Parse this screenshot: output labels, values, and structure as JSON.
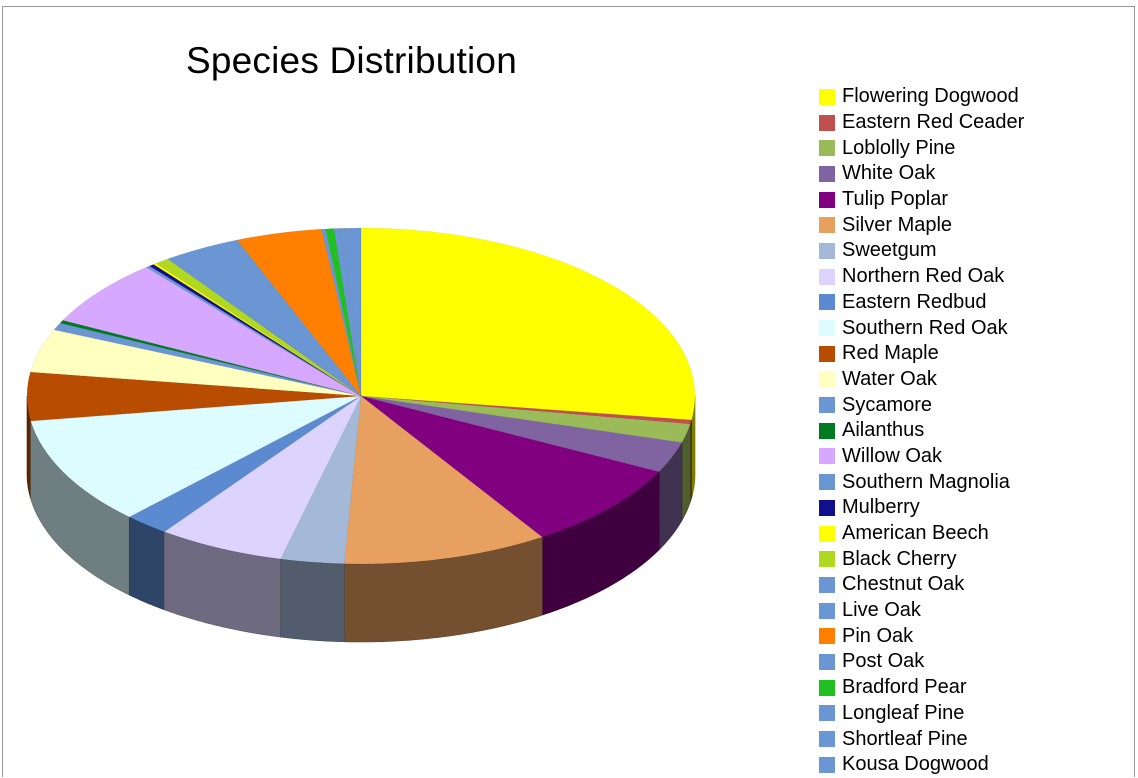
{
  "chart_data": {
    "type": "pie",
    "title": "Species Distribution",
    "legend_position": "right",
    "three_d": true,
    "series": [
      {
        "name": "Flowering Dogwood",
        "value": 27.5,
        "color": "#ffff00"
      },
      {
        "name": "Eastern Red Ceader",
        "value": 0.4,
        "color": "#c0504d"
      },
      {
        "name": "Loblolly Pine",
        "value": 1.8,
        "color": "#9bbb59"
      },
      {
        "name": "White Oak",
        "value": 3.0,
        "color": "#8064a2"
      },
      {
        "name": "Tulip Poplar",
        "value": 8.5,
        "color": "#800080"
      },
      {
        "name": "Silver Maple",
        "value": 10.0,
        "color": "#e8a060"
      },
      {
        "name": "Sweetgum",
        "value": 3.1,
        "color": "#a4b8d8"
      },
      {
        "name": "Northern Red Oak",
        "value": 6.2,
        "color": "#dcd4ff"
      },
      {
        "name": "Eastern Redbud",
        "value": 2.2,
        "color": "#5b8ad0"
      },
      {
        "name": "Southern Red Oak",
        "value": 10.5,
        "color": "#ddfcff"
      },
      {
        "name": "Red Maple",
        "value": 4.7,
        "color": "#b84c00"
      },
      {
        "name": "Water Oak",
        "value": 4.2,
        "color": "#ffffc0"
      },
      {
        "name": "Sycamore",
        "value": 0.7,
        "color": "#6a96d4"
      },
      {
        "name": "Ailanthus",
        "value": 0.3,
        "color": "#007a20"
      },
      {
        "name": "Willow Oak",
        "value": 6.5,
        "color": "#d6a8ff"
      },
      {
        "name": "Southern Magnolia",
        "value": 0.2,
        "color": "#6a96d4"
      },
      {
        "name": "Mulberry",
        "value": 0.25,
        "color": "#10108c"
      },
      {
        "name": "American Beech",
        "value": 0.15,
        "color": "#ffff00"
      },
      {
        "name": "Black Cherry",
        "value": 0.7,
        "color": "#b0d820"
      },
      {
        "name": "Chestnut Oak",
        "value": 0.2,
        "color": "#6a96d4"
      },
      {
        "name": "Live Oak",
        "value": 3.6,
        "color": "#6a96d4"
      },
      {
        "name": "Pin Oak",
        "value": 4.2,
        "color": "#ff8000"
      },
      {
        "name": "Post Oak",
        "value": 0.2,
        "color": "#6a96d4"
      },
      {
        "name": "Bradford Pear",
        "value": 0.4,
        "color": "#20c020"
      },
      {
        "name": "Longleaf Pine",
        "value": 0.3,
        "color": "#6a96d4"
      },
      {
        "name": "Shortleaf Pine",
        "value": 0.2,
        "color": "#6a96d4"
      },
      {
        "name": "Kousa Dogwood",
        "value": 0.8,
        "color": "#6a96d4"
      }
    ]
  }
}
